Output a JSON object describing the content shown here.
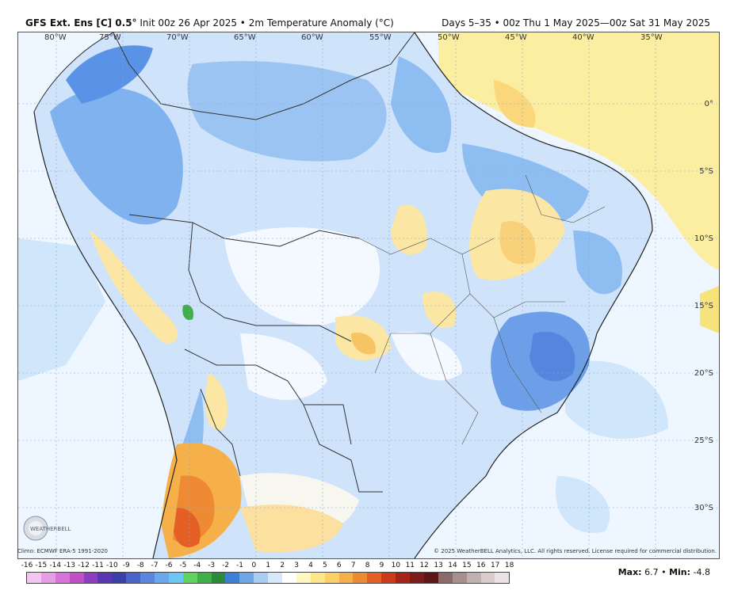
{
  "header": {
    "model_name": "GFS Ext.  Ens [C] 0.5°",
    "init": "Init 00z 26 Apr 2025",
    "separator": "•",
    "variable": "2m Temperature Anomaly (°C)",
    "valid": "Days 5–35 • 00z Thu 1 May 2025—00z Sat 31 May 2025"
  },
  "axes": {
    "longitudes": [
      "80°W",
      "75°W",
      "70°W",
      "65°W",
      "60°W",
      "55°W",
      "50°W",
      "45°W",
      "40°W",
      "35°W"
    ],
    "latitudes": [
      "0°",
      "5°S",
      "10°S",
      "15°S",
      "20°S",
      "25°S",
      "30°S"
    ]
  },
  "footer": {
    "climo": "Climo: ECMWF ERA-5 1991-2020",
    "copyright": "© 2025 WeatherBELL Analytics, LLC. All rights reserved. License required for commercial distribution.",
    "logo_text": "WEATHERBELL",
    "max_label": "Max:",
    "max_value": "6.7",
    "min_label": "Min:",
    "min_value": "-4.8",
    "separator": "•"
  },
  "colorbar": {
    "ticks": [
      "-16",
      "-15",
      "-14",
      "-13",
      "-12",
      "-11",
      "-10",
      "-9",
      "-8",
      "-7",
      "-6",
      "-5",
      "-4",
      "-3",
      "-2",
      "-1",
      "0",
      "1",
      "2",
      "3",
      "4",
      "5",
      "6",
      "7",
      "8",
      "9",
      "10",
      "11",
      "12",
      "13",
      "14",
      "15",
      "16",
      "17",
      "18"
    ],
    "colors": [
      "#f2c6f0",
      "#e59ee4",
      "#d874d8",
      "#c24fc8",
      "#8b3fc0",
      "#5a35b4",
      "#3b3fa8",
      "#4a63c9",
      "#5c85dd",
      "#6aa8ee",
      "#6bc7f2",
      "#5fd35f",
      "#3faf48",
      "#2b8a3b",
      "#3d7fd6",
      "#6fa6e8",
      "#a9ccf5",
      "#d6e9fb",
      "#ffffff",
      "#fff7c4",
      "#fde68a",
      "#fbd067",
      "#f6b04a",
      "#ee8a33",
      "#e35f24",
      "#cc3a1a",
      "#a5241a",
      "#7e1b1b",
      "#5e1515",
      "#8a6a6a",
      "#a58f8f",
      "#c0b0b0",
      "#d8cccc",
      "#ebe3e3"
    ]
  }
}
